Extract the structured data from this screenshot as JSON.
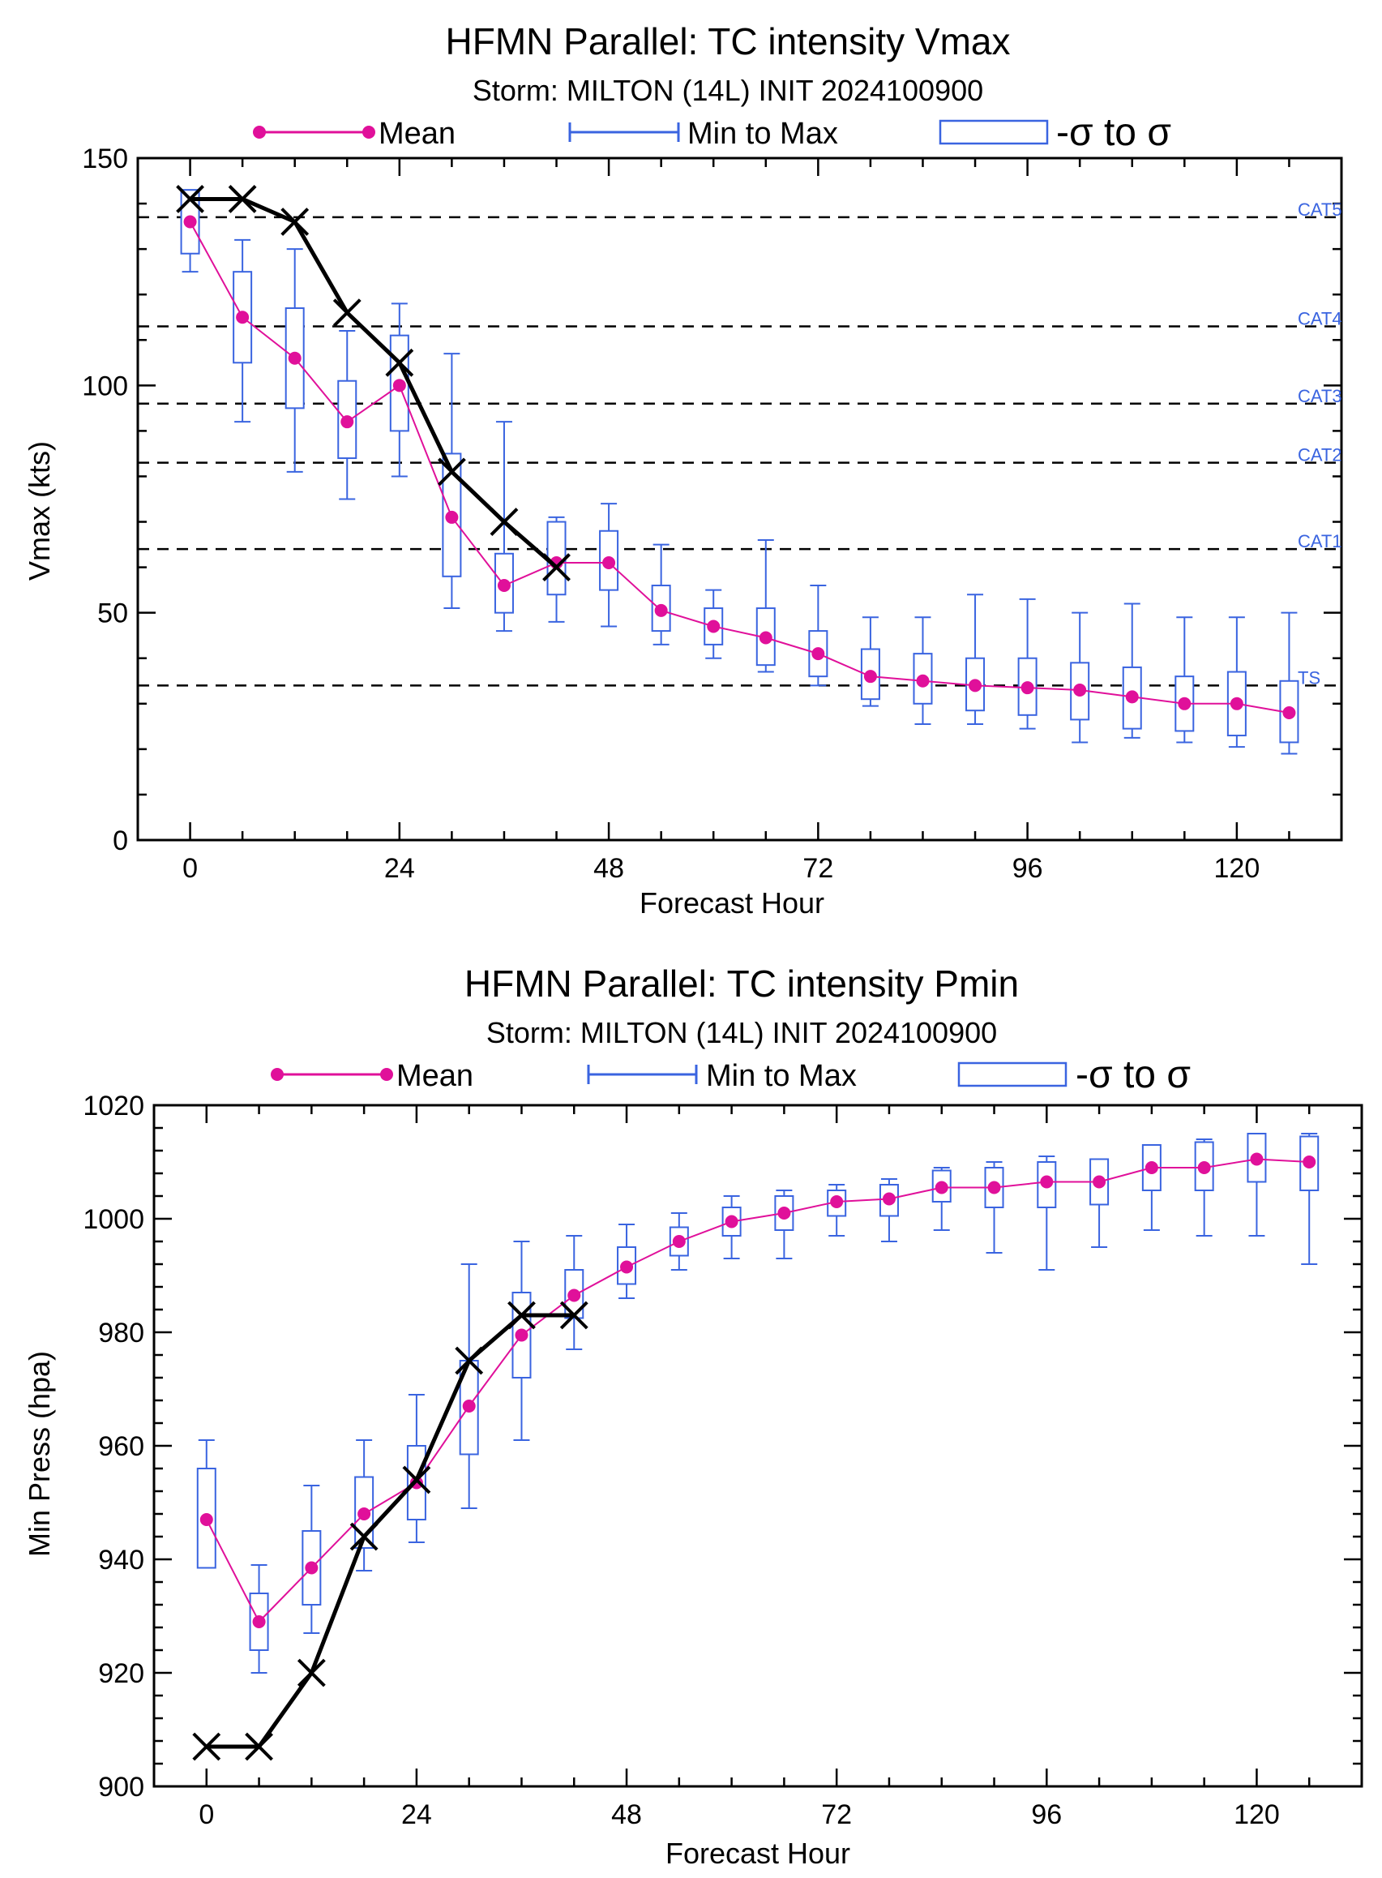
{
  "colors": {
    "mean": "#e0109a",
    "spread": "#3a64e0",
    "best_track": "#000000",
    "threshold": "#000000"
  },
  "chart_data": [
    {
      "type": "box-line",
      "title": "HFMN Parallel: TC intensity Vmax",
      "subtitle": "Storm: MILTON (14L) INIT 2024100900",
      "legend": {
        "mean": "Mean",
        "range": "Min to Max",
        "sigma_prefix": "-σ to σ"
      },
      "xlabel": "Forecast Hour",
      "ylabel": "Vmax (kts)",
      "xlim": [
        -6,
        132
      ],
      "ylim": [
        0,
        150
      ],
      "xticks": [
        0,
        24,
        48,
        72,
        96,
        120
      ],
      "yticks": [
        0,
        50,
        100,
        150
      ],
      "thresholds": [
        {
          "label": "CAT5",
          "value": 137
        },
        {
          "label": "CAT4",
          "value": 113
        },
        {
          "label": "CAT3",
          "value": 96
        },
        {
          "label": "CAT2",
          "value": 83
        },
        {
          "label": "CAT1",
          "value": 64
        },
        {
          "label": "TS",
          "value": 34
        }
      ],
      "x": [
        0,
        6,
        12,
        18,
        24,
        30,
        36,
        42,
        48,
        54,
        60,
        66,
        72,
        78,
        84,
        90,
        96,
        102,
        108,
        114,
        120,
        126
      ],
      "mean": [
        136,
        115,
        106,
        92,
        100,
        71,
        56,
        61,
        61,
        50.5,
        47,
        44.5,
        41,
        36,
        35,
        34,
        33.5,
        33,
        31.5,
        30,
        30,
        28
      ],
      "min": [
        125,
        92,
        81,
        75,
        80,
        51,
        46,
        48,
        47,
        43,
        40,
        37,
        34,
        29.5,
        25.5,
        25.5,
        24.5,
        21.5,
        22.5,
        21.5,
        20.5,
        19
      ],
      "max": [
        143,
        132,
        130,
        112,
        118,
        107,
        92,
        71,
        74,
        65,
        55,
        66,
        56,
        49,
        49,
        54,
        53,
        50,
        52,
        49,
        49,
        50
      ],
      "sigma_low": [
        129,
        105,
        95,
        84,
        90,
        58,
        50,
        54,
        55,
        46,
        43,
        38.5,
        36,
        31,
        30,
        28.5,
        27.5,
        26.5,
        24.5,
        24,
        23,
        21.5
      ],
      "sigma_high": [
        143,
        125,
        117,
        101,
        111,
        85,
        63,
        70,
        68,
        56,
        51,
        51,
        46,
        42,
        41,
        40,
        40,
        39,
        38,
        36,
        37,
        35
      ],
      "best_track_x": [
        0,
        6,
        12,
        18,
        24,
        30,
        36,
        42
      ],
      "best_track": [
        141,
        141,
        136,
        116,
        105,
        81,
        70,
        60
      ]
    },
    {
      "type": "box-line",
      "title": "HFMN Parallel: TC intensity Pmin",
      "subtitle": "Storm: MILTON (14L) INIT 2024100900",
      "legend": {
        "mean": "Mean",
        "range": "Min to Max",
        "sigma_prefix": "-σ to σ"
      },
      "xlabel": "Forecast Hour",
      "ylabel": "Min Press (hpa)",
      "xlim": [
        -6,
        132
      ],
      "ylim": [
        900,
        1020
      ],
      "xticks": [
        0,
        24,
        48,
        72,
        96,
        120
      ],
      "yticks": [
        900,
        920,
        940,
        960,
        980,
        1000,
        1020
      ],
      "x": [
        0,
        6,
        12,
        18,
        24,
        30,
        36,
        42,
        48,
        54,
        60,
        66,
        72,
        78,
        84,
        90,
        96,
        102,
        108,
        114,
        120,
        126
      ],
      "mean": [
        947,
        929,
        938.5,
        948,
        953.5,
        967,
        979.5,
        986.5,
        991.5,
        996,
        999.5,
        1001,
        1003,
        1003.5,
        1005.5,
        1005.5,
        1006.5,
        1006.5,
        1009,
        1009,
        1010.5,
        1010
      ],
      "min": [
        939,
        920,
        927,
        938,
        943,
        949,
        961,
        977,
        986,
        991,
        993,
        993,
        997,
        996,
        998,
        994,
        991,
        995,
        998,
        997,
        997,
        992
      ],
      "max": [
        961,
        939,
        953,
        961,
        969,
        992,
        996,
        997,
        999,
        1001,
        1004,
        1005,
        1006,
        1007,
        1009,
        1010,
        1011,
        1010,
        1013,
        1014,
        1015,
        1015
      ],
      "sigma_low": [
        938.5,
        924,
        932,
        942,
        947,
        958.5,
        972,
        982.5,
        988.5,
        993.5,
        997,
        998,
        1000.5,
        1000.5,
        1003,
        1002,
        1002,
        1002.5,
        1005,
        1005,
        1006.5,
        1005
      ],
      "sigma_high": [
        956,
        934,
        945,
        954.5,
        960,
        975,
        987,
        991,
        995,
        998.5,
        1002,
        1004,
        1005,
        1006,
        1008.5,
        1009,
        1010,
        1010.5,
        1013,
        1013.5,
        1015,
        1014.5
      ],
      "best_track_x": [
        0,
        6,
        12,
        18,
        24,
        30,
        36,
        42
      ],
      "best_track": [
        907,
        907,
        920,
        944,
        954,
        975,
        983,
        983
      ]
    }
  ]
}
